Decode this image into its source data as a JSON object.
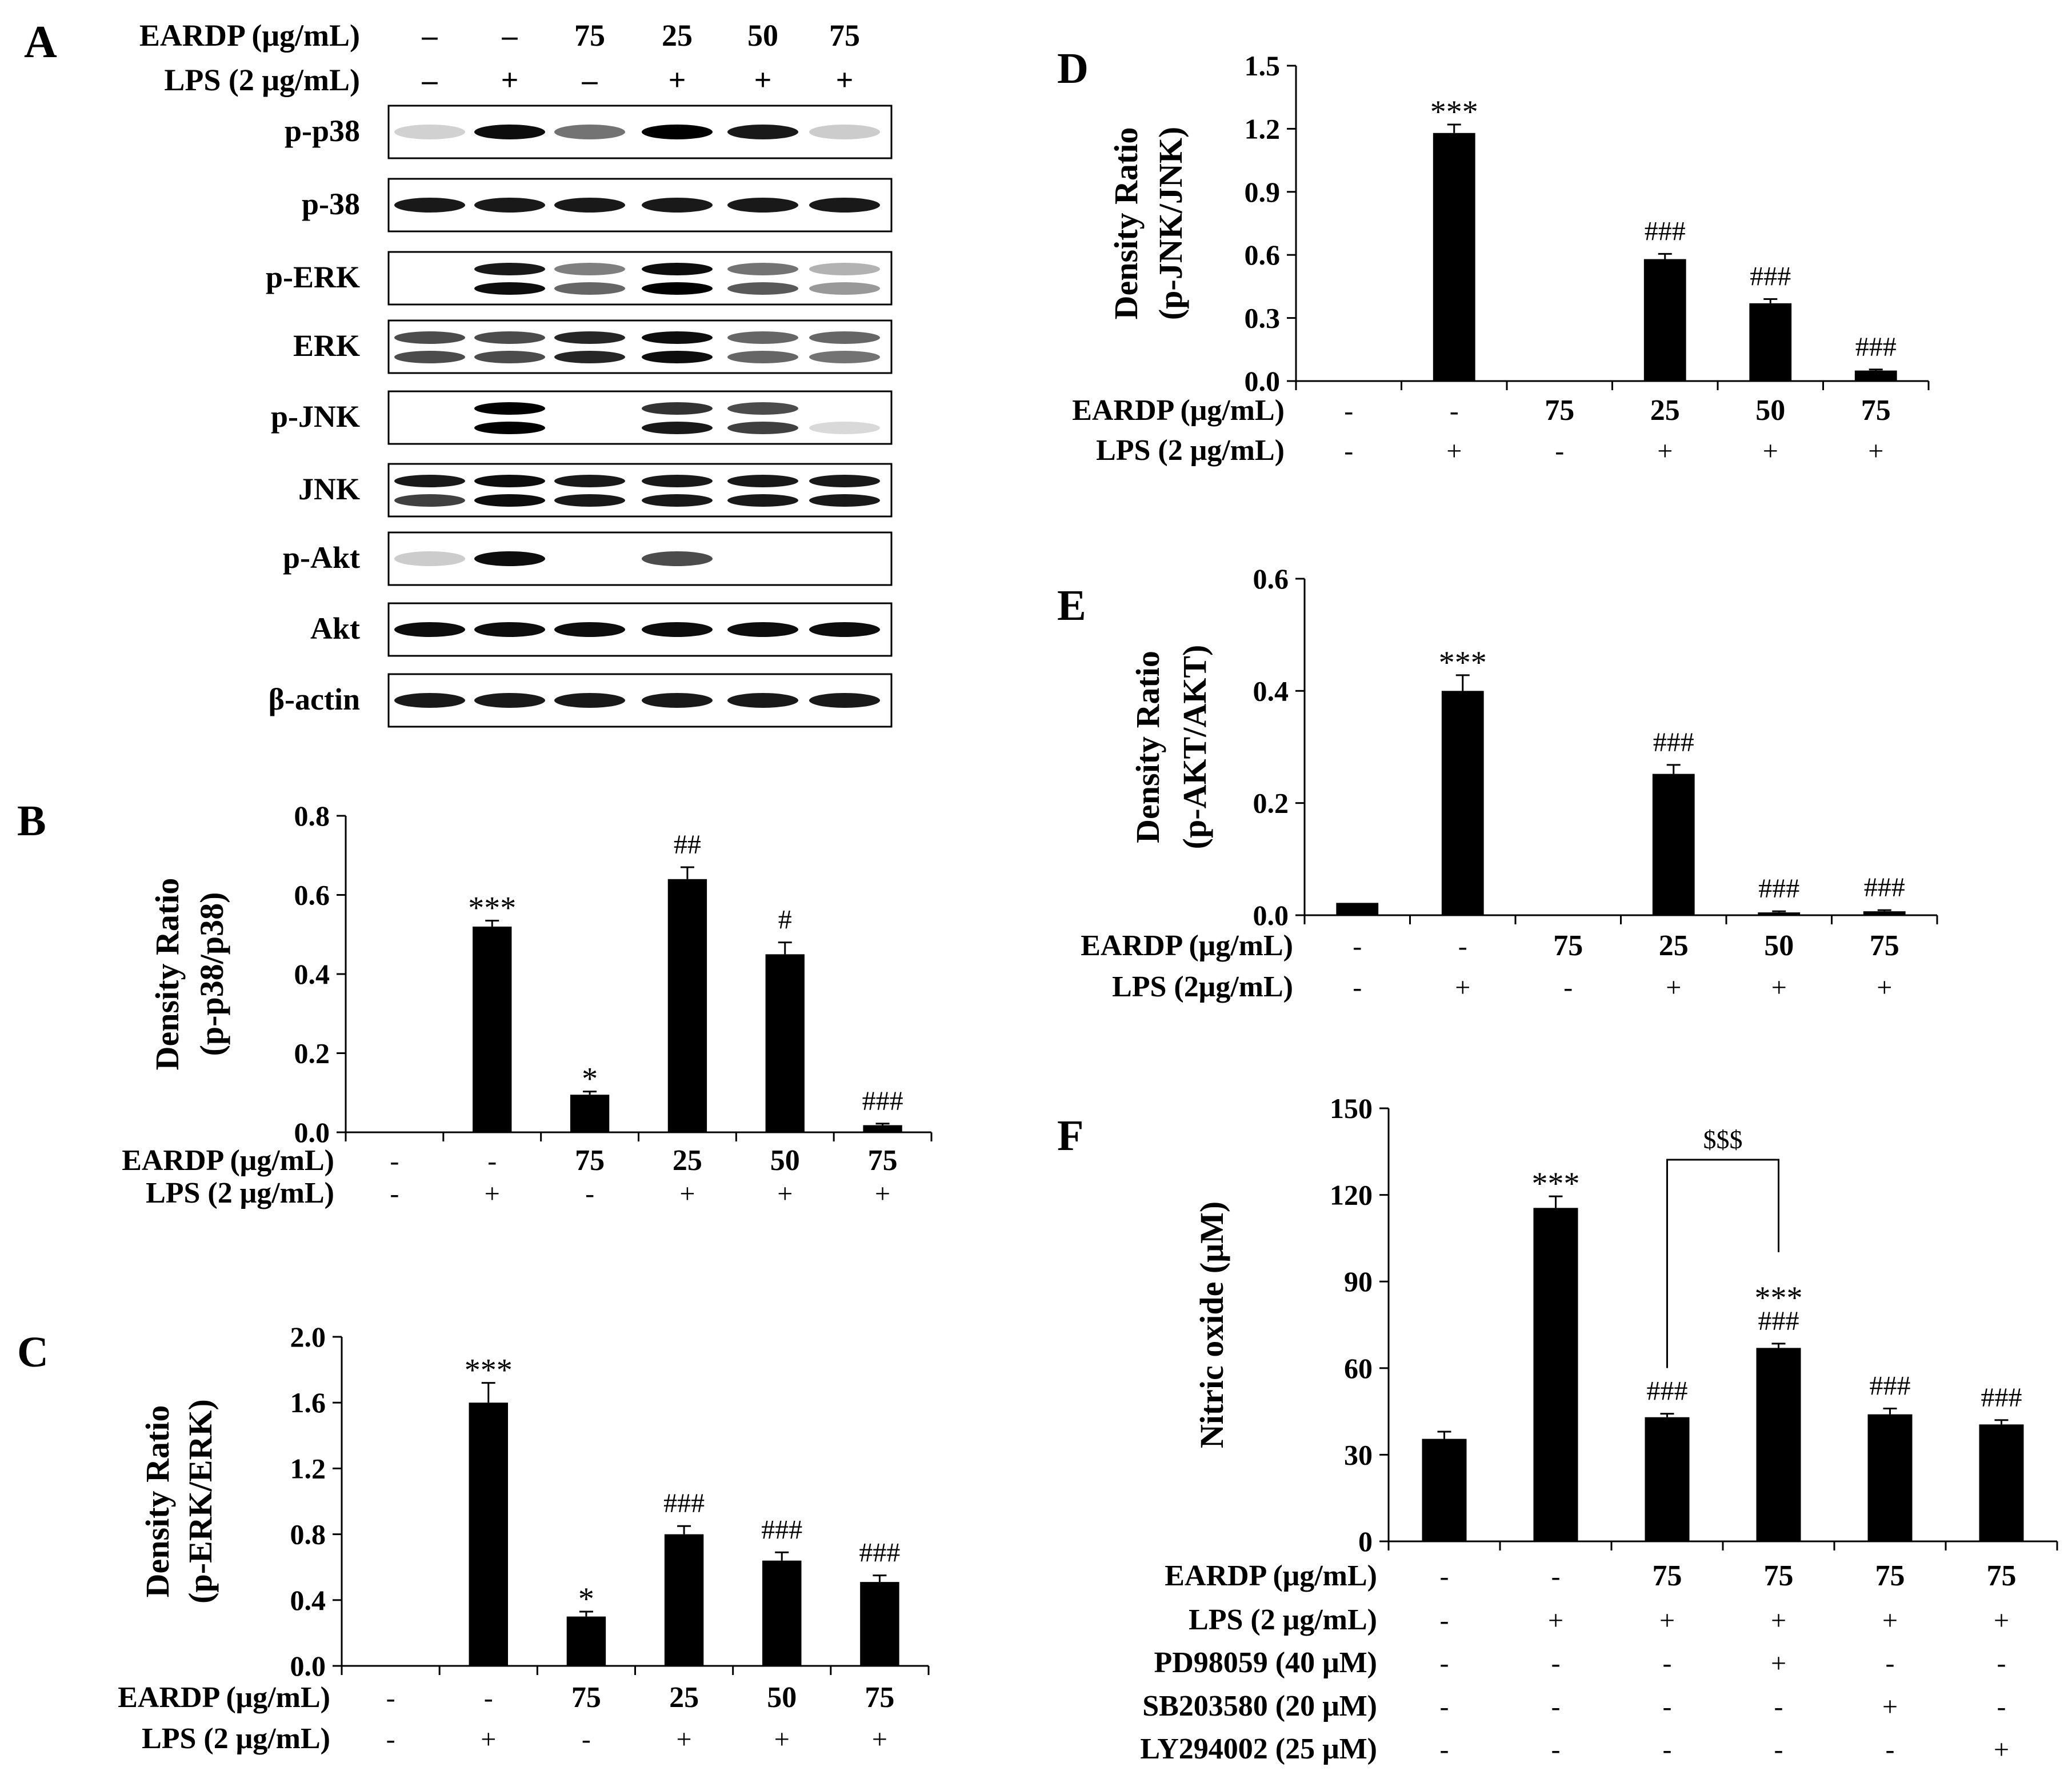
{
  "panel_a": {
    "letter": "A",
    "header_rows": [
      {
        "label": "EARDP (μg/mL)",
        "values": [
          "–",
          "–",
          "75",
          "25",
          "50",
          "75"
        ]
      },
      {
        "label": "LPS (2 μg/mL)",
        "values": [
          "–",
          "+",
          "–",
          "+",
          "+",
          "+"
        ]
      }
    ],
    "blots": [
      {
        "label": "p-p38",
        "bands": [
          [
            0.18,
            0
          ],
          [
            0.95,
            0
          ],
          [
            0.55,
            0
          ],
          [
            1.0,
            0
          ],
          [
            0.9,
            0
          ],
          [
            0.2,
            0
          ]
        ]
      },
      {
        "label": "p-38",
        "bands": [
          [
            0.9,
            0
          ],
          [
            0.9,
            0
          ],
          [
            0.9,
            0
          ],
          [
            0.9,
            0
          ],
          [
            0.9,
            0
          ],
          [
            0.9,
            0
          ]
        ]
      },
      {
        "label": "p-ERK",
        "bands": [
          [
            0,
            0
          ],
          [
            0.9,
            0.95
          ],
          [
            0.5,
            0.6
          ],
          [
            0.95,
            1.0
          ],
          [
            0.55,
            0.65
          ],
          [
            0.3,
            0.4
          ]
        ]
      },
      {
        "label": "ERK",
        "bands": [
          [
            0.7,
            0.7
          ],
          [
            0.7,
            0.7
          ],
          [
            0.85,
            0.85
          ],
          [
            0.95,
            0.95
          ],
          [
            0.6,
            0.6
          ],
          [
            0.6,
            0.55
          ]
        ]
      },
      {
        "label": "p-JNK",
        "bands": [
          [
            0,
            0
          ],
          [
            1.0,
            1.0
          ],
          [
            0,
            0
          ],
          [
            0.8,
            0.9
          ],
          [
            0.7,
            0.75
          ],
          [
            0,
            0.15
          ]
        ]
      },
      {
        "label": "JNK",
        "bands": [
          [
            0.9,
            0.75
          ],
          [
            0.95,
            0.95
          ],
          [
            0.9,
            0.9
          ],
          [
            0.9,
            0.9
          ],
          [
            0.9,
            0.9
          ],
          [
            0.9,
            0.9
          ]
        ]
      },
      {
        "label": "p-Akt",
        "bands": [
          [
            0.2,
            0
          ],
          [
            0.95,
            0
          ],
          [
            0,
            0
          ],
          [
            0.7,
            0
          ],
          [
            0,
            0
          ],
          [
            0,
            0
          ]
        ]
      },
      {
        "label": "Akt",
        "bands": [
          [
            0.95,
            0
          ],
          [
            0.95,
            0
          ],
          [
            0.95,
            0
          ],
          [
            0.95,
            0
          ],
          [
            0.95,
            0
          ],
          [
            0.95,
            0
          ]
        ]
      },
      {
        "label": "β-actin",
        "bands": [
          [
            0.9,
            0
          ],
          [
            0.9,
            0
          ],
          [
            0.9,
            0
          ],
          [
            0.9,
            0
          ],
          [
            0.9,
            0
          ],
          [
            0.9,
            0
          ]
        ]
      }
    ]
  },
  "chart_data": [
    {
      "id": "B",
      "letter": "B",
      "type": "bar",
      "ylabel_lines": [
        "Density  Ratio",
        "(p-p38/p38)"
      ],
      "ylim": [
        0,
        0.8
      ],
      "ticks": [
        0.0,
        0.2,
        0.4,
        0.6,
        0.8
      ],
      "tick_labels": [
        "0.0",
        "0.2",
        "0.4",
        "0.6",
        "0.8"
      ],
      "values": [
        0.0,
        0.52,
        0.095,
        0.64,
        0.45,
        0.018
      ],
      "errors": [
        0,
        0.015,
        0.008,
        0.03,
        0.03,
        0.004
      ],
      "annotations": [
        [
          ""
        ],
        [
          "***"
        ],
        [
          "*"
        ],
        [
          "##"
        ],
        [
          "#"
        ],
        [
          "###"
        ]
      ],
      "conditions": [
        {
          "label": "EARDP (μg/mL)",
          "values": [
            "-",
            "-",
            "75",
            "25",
            "50",
            "75"
          ]
        },
        {
          "label": "LPS (2 μg/mL)",
          "values": [
            "-",
            "+",
            "-",
            "+",
            "+",
            "+"
          ]
        }
      ]
    },
    {
      "id": "C",
      "letter": "C",
      "type": "bar",
      "ylabel_lines": [
        "Density  Ratio",
        "(p-ERK/ERK)"
      ],
      "ylim": [
        0,
        2.0
      ],
      "ticks": [
        0.0,
        0.4,
        0.8,
        1.2,
        1.6,
        2.0
      ],
      "tick_labels": [
        "0.0",
        "0.4",
        "0.8",
        "1.2",
        "1.6",
        "2.0"
      ],
      "values": [
        0.0,
        1.6,
        0.3,
        0.8,
        0.64,
        0.51
      ],
      "errors": [
        0,
        0.12,
        0.03,
        0.05,
        0.05,
        0.04
      ],
      "annotations": [
        [
          ""
        ],
        [
          "***"
        ],
        [
          "*"
        ],
        [
          "###"
        ],
        [
          "###"
        ],
        [
          "###"
        ]
      ],
      "conditions": [
        {
          "label": "EARDP (μg/mL)",
          "values": [
            "-",
            "-",
            "75",
            "25",
            "50",
            "75"
          ]
        },
        {
          "label": "LPS (2 μg/mL)",
          "values": [
            "-",
            "+",
            "-",
            "+",
            "+",
            "+"
          ]
        }
      ]
    },
    {
      "id": "D",
      "letter": "D",
      "type": "bar",
      "ylabel_lines": [
        "Density  Ratio",
        "(p-JNK/JNK)"
      ],
      "ylim": [
        0,
        1.5
      ],
      "ticks": [
        0.0,
        0.3,
        0.6,
        0.9,
        1.2,
        1.5
      ],
      "tick_labels": [
        "0.0",
        "0.3",
        "0.6",
        "0.9",
        "1.2",
        "1.5"
      ],
      "values": [
        0.0,
        1.18,
        0.0,
        0.58,
        0.37,
        0.05
      ],
      "errors": [
        0,
        0.04,
        0,
        0.025,
        0.02,
        0.005
      ],
      "annotations": [
        [
          ""
        ],
        [
          "***"
        ],
        [
          ""
        ],
        [
          "###"
        ],
        [
          "###"
        ],
        [
          "###"
        ]
      ],
      "conditions": [
        {
          "label": "EARDP (μg/mL)",
          "values": [
            "-",
            "-",
            "75",
            "25",
            "50",
            "75"
          ]
        },
        {
          "label": "LPS (2 μg/mL)",
          "values": [
            "-",
            "+",
            "-",
            "+",
            "+",
            "+"
          ]
        }
      ]
    },
    {
      "id": "E",
      "letter": "E",
      "type": "bar",
      "ylabel_lines": [
        "Density  Ratio",
        "(p-AKT/AKT)"
      ],
      "ylim": [
        0,
        0.6
      ],
      "ticks": [
        0.0,
        0.2,
        0.4,
        0.6
      ],
      "tick_labels": [
        "0.0",
        "0.2",
        "0.4",
        "0.6"
      ],
      "values": [
        0.022,
        0.4,
        0.001,
        0.252,
        0.005,
        0.007
      ],
      "errors": [
        0,
        0.028,
        0,
        0.016,
        0.002,
        0.002
      ],
      "annotations": [
        [
          ""
        ],
        [
          "***"
        ],
        [
          ""
        ],
        [
          "###"
        ],
        [
          "###"
        ],
        [
          "###"
        ]
      ],
      "conditions": [
        {
          "label": "EARDP (μg/mL)",
          "values": [
            "-",
            "-",
            "75",
            "25",
            "50",
            "75"
          ]
        },
        {
          "label": "LPS (2μg/mL)",
          "values": [
            "-",
            "+",
            "-",
            "+",
            "+",
            "+"
          ]
        }
      ]
    },
    {
      "id": "F",
      "letter": "F",
      "type": "bar",
      "ylabel_lines": [
        "Nitric oxide (μM)"
      ],
      "ylim": [
        0,
        150
      ],
      "ticks": [
        0,
        30,
        60,
        90,
        120,
        150
      ],
      "tick_labels": [
        "0",
        "30",
        "60",
        "90",
        "120",
        "150"
      ],
      "values": [
        35.5,
        115.5,
        43,
        67,
        44,
        40.5
      ],
      "errors": [
        2.5,
        4,
        1.2,
        1.5,
        2,
        1.5
      ],
      "annotations": [
        [
          ""
        ],
        [
          "***"
        ],
        [
          "###"
        ],
        [
          "###",
          "***"
        ],
        [
          "###"
        ],
        [
          "###"
        ]
      ],
      "bracket": {
        "from": 2,
        "to": 3,
        "label": "$$$"
      },
      "conditions": [
        {
          "label": "EARDP (μg/mL)",
          "values": [
            "-",
            "-",
            "75",
            "75",
            "75",
            "75"
          ]
        },
        {
          "label": "LPS (2 μg/mL)",
          "values": [
            "-",
            "+",
            "+",
            "+",
            "+",
            "+"
          ]
        },
        {
          "label": "PD98059 (40 μM)",
          "values": [
            "-",
            "-",
            "-",
            "+",
            "-",
            "-"
          ]
        },
        {
          "label": "SB203580 (20 μM)",
          "values": [
            "-",
            "-",
            "-",
            "-",
            "+",
            "-"
          ]
        },
        {
          "label": "LY294002 (25 μM)",
          "values": [
            "-",
            "-",
            "-",
            "-",
            "-",
            "+"
          ]
        }
      ]
    }
  ]
}
